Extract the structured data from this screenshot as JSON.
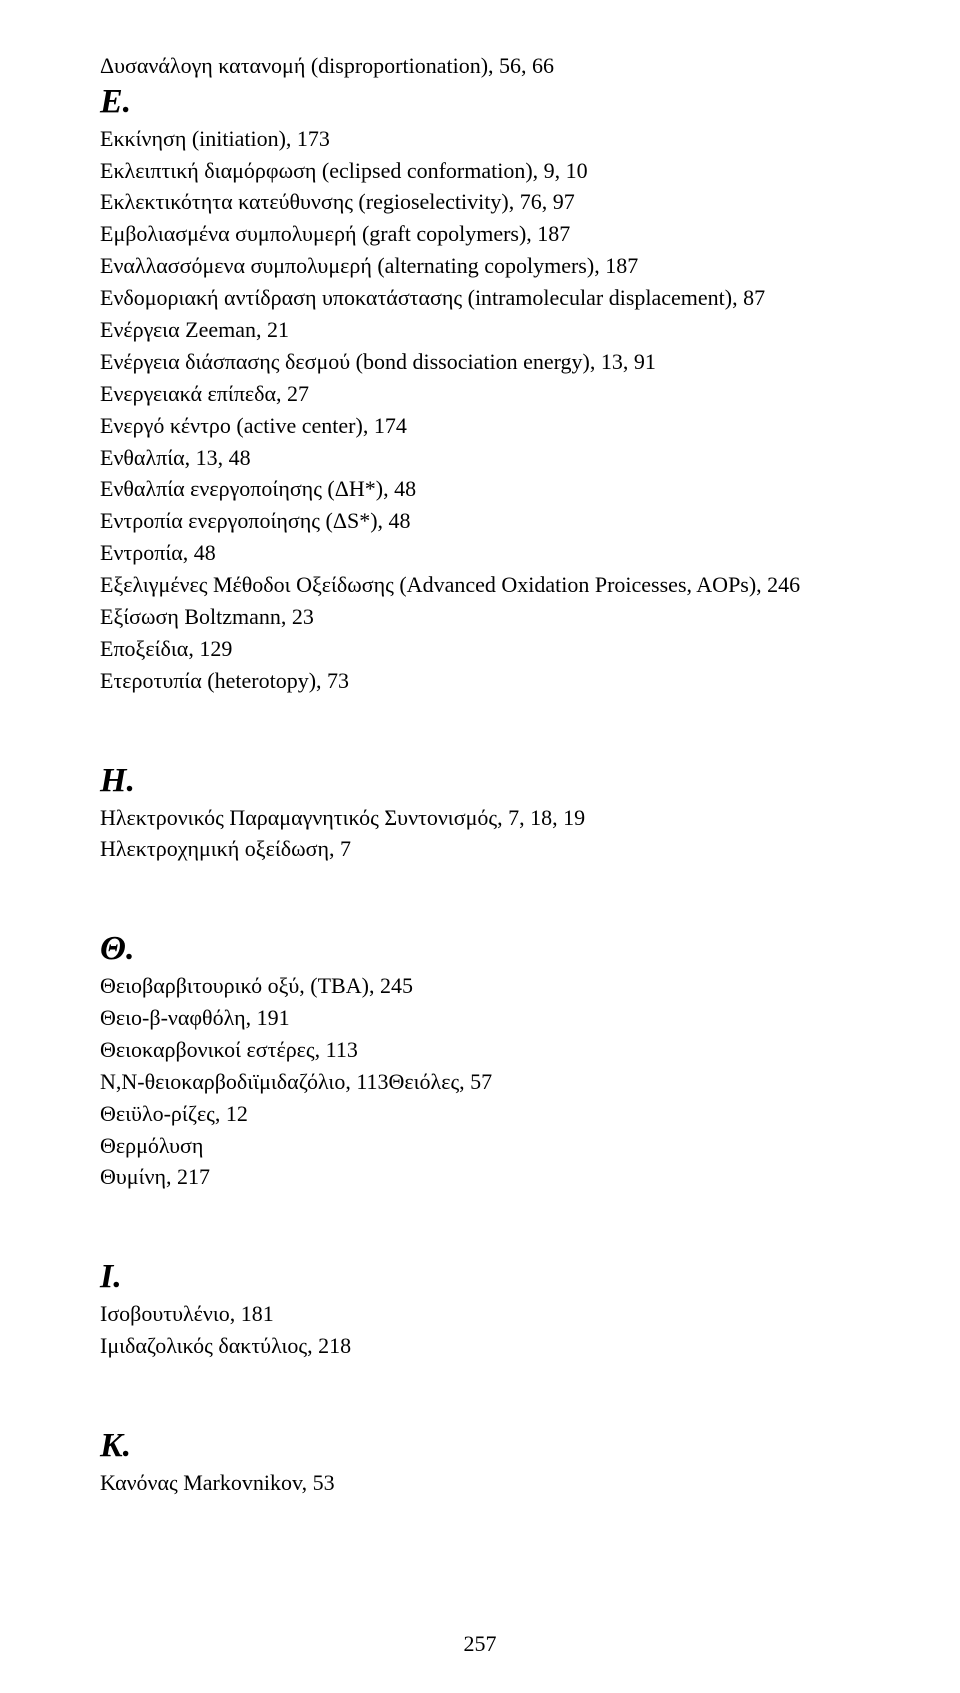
{
  "pre": {
    "entries": [
      "Δυσανάλογη κατανομή (disproportionation), 56, 66"
    ]
  },
  "sections": [
    {
      "letter": "Ε.",
      "entries": [
        "Εκκίνηση (initiation), 173",
        "Εκλειπτική διαμόρφωση (eclipsed conformation), 9, 10",
        "Εκλεκτικότητα κατεύθυνσης (regioselectivity), 76, 97",
        "Εμβολιασμένα συμπολυμερή (graft copolymers), 187",
        "Εναλλασσόμενα συμπολυμερή (alternating copolymers), 187",
        "Ενδομοριακή αντίδραση υποκατάστασης (intramolecular displacement), 87",
        "Ενέργεια Zeeman, 21",
        "Ενέργεια διάσπασης δεσμού (bond dissociation energy), 13, 91",
        "Ενεργειακά επίπεδα, 27",
        "Ενεργό κέντρο (active center), 174",
        "Ενθαλπία, 13, 48",
        "Ενθαλπία ενεργοποίησης (ΔΗ*), 48",
        "Εντροπία ενεργοποίησης (ΔS*), 48",
        "Εντροπία, 48",
        "Εξελιγμένες Μέθοδοι Οξείδωσης (Advanced Oxidation Proicesses, AOPs), 246",
        "Εξίσωση Boltzmann, 23",
        "Εποξείδια, 129",
        "Ετεροτυπία (heterotopy), 73"
      ]
    },
    {
      "letter": "Η.",
      "entries": [
        "Ηλεκτρονικός Παραμαγνητικός Συντονισμός, 7, 18, 19",
        "Ηλεκτροχημική οξείδωση, 7"
      ]
    },
    {
      "letter": "Θ.",
      "entries": [
        "Θειοβαρβιτουρικό οξύ, (ΤΒΑ), 245",
        "Θειο-β-ναφθόλη, 191",
        "Θειοκαρβονικοί εστέρες, 113",
        "Ν,Ν-θειοκαρβοδιϊμιδαζόλιο, 113Θειόλες, 57",
        "Θειϋλο-ρίζες, 12",
        "Θερμόλυση",
        "Θυμίνη, 217"
      ]
    },
    {
      "letter": "Ι.",
      "entries": [
        "Ισοβουτυλένιο, 181",
        "Ιμιδαζολικός δακτύλιος, 218"
      ]
    },
    {
      "letter": "Κ.",
      "entries": [
        "Κανόνας Markovnikov, 53"
      ]
    }
  ],
  "pageNumber": "257"
}
